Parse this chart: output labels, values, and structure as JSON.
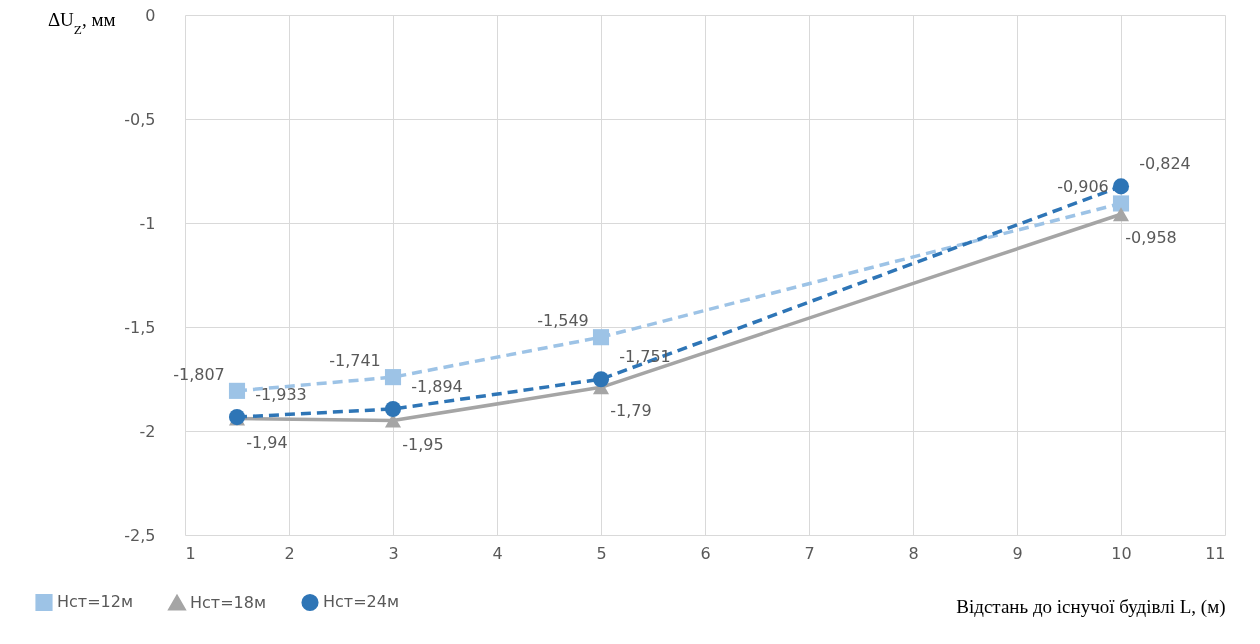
{
  "chart_data": {
    "type": "line",
    "xlabel": "Відстань до існучої будівлі L, (м)",
    "ylabel": "ΔU$_{Z}$, мм",
    "x": [
      1.5,
      3,
      5,
      10
    ],
    "xlim": [
      1,
      11
    ],
    "xticks": [
      1,
      2,
      3,
      4,
      5,
      6,
      7,
      8,
      9,
      10,
      11
    ],
    "ylim": [
      -2.5,
      0
    ],
    "yticks": [
      {
        "value": -2.5,
        "label": "-2,5"
      },
      -2,
      {
        "value": -1.5,
        "label": "-1,5"
      },
      -1,
      {
        "value": -0.5,
        "label": "-0,5"
      },
      0
    ],
    "grid": true,
    "legend": "bottom",
    "series": [
      {
        "name": "Нст=12м",
        "color": "#9dc3e6",
        "marker": "square",
        "line_style": "dashed",
        "values": [
          -1.807,
          -1.741,
          -1.549,
          -0.906
        ],
        "value_labels": [
          "-1,807",
          "-1,741",
          "-1,549",
          "-0,906"
        ]
      },
      {
        "name": "Нст=18м",
        "color": "#a5a5a5",
        "marker": "triangle",
        "line_style": "solid",
        "values": [
          -1.94,
          -1.95,
          -1.79,
          -0.958
        ],
        "value_labels": [
          "-1,94",
          "-1,95",
          "-1,79",
          "-0,958"
        ]
      },
      {
        "name": "Нст=24м",
        "color": "#2e75b6",
        "marker": "circle",
        "line_style": "dashed",
        "values": [
          -1.933,
          -1.894,
          -1.751,
          -0.824
        ],
        "value_labels": [
          "-1,933",
          "-1,894",
          "-1,751",
          "-0,824"
        ]
      }
    ]
  }
}
